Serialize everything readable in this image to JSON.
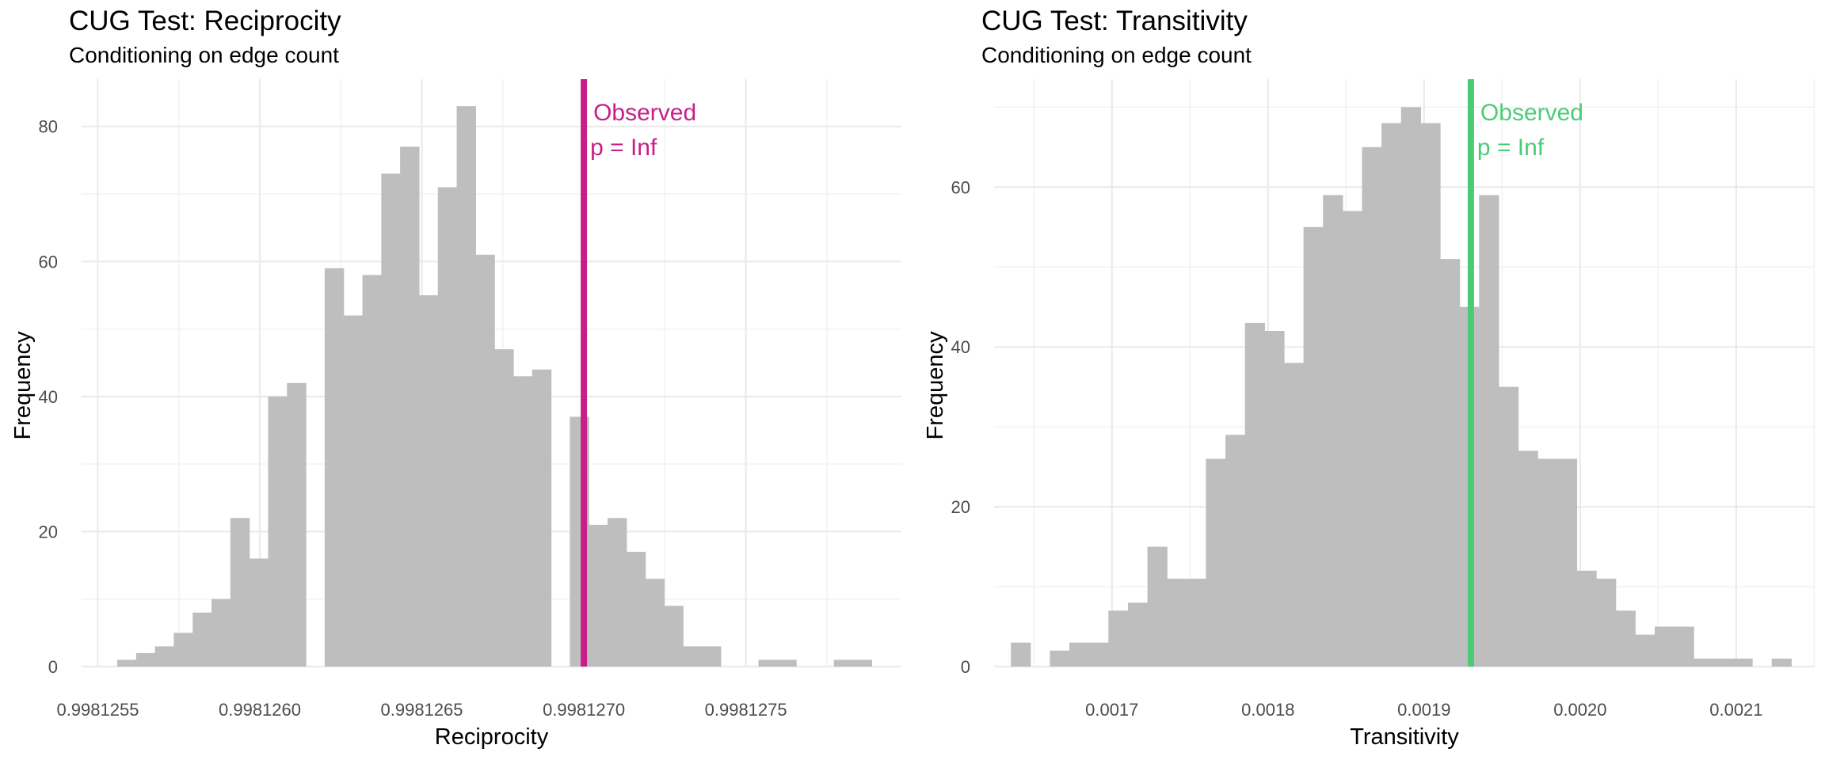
{
  "chart_data": [
    {
      "type": "bar",
      "subtype": "histogram",
      "title": "CUG Test: Reciprocity",
      "subtitle": "Conditioning on edge count",
      "xlabel": "Reciprocity",
      "ylabel": "Frequency",
      "xlim": [
        0.99812545,
        0.99812798
      ],
      "ylim": [
        0,
        87
      ],
      "x_ticks": [
        0.9981255,
        0.998126,
        0.9981265,
        0.998127,
        0.9981275
      ],
      "x_tick_labels": [
        "0.9981255",
        "0.9981260",
        "0.9981265",
        "0.9981270",
        "0.9981275"
      ],
      "y_ticks": [
        0,
        20,
        40,
        60,
        80
      ],
      "y_tick_labels": [
        "0",
        "20",
        "40",
        "60",
        "80"
      ],
      "bin_start": 0.99812556,
      "bin_width": 5.82e-08,
      "counts": [
        1,
        2,
        3,
        5,
        8,
        10,
        22,
        16,
        40,
        42,
        0,
        59,
        52,
        58,
        73,
        77,
        55,
        71,
        83,
        61,
        47,
        43,
        44,
        0,
        37,
        21,
        22,
        17,
        13,
        9,
        3,
        3,
        0,
        0,
        1,
        1,
        0,
        0,
        1,
        1
      ],
      "bar_color": "#bebebe",
      "observed": {
        "value": 0.998127,
        "label": "Observed",
        "p_label": "p = Inf",
        "color": "#c71e8a"
      },
      "grid": true
    },
    {
      "type": "bar",
      "subtype": "histogram",
      "title": "CUG Test: Transitivity",
      "subtitle": "Conditioning on edge count",
      "xlabel": "Transitivity",
      "ylabel": "Frequency",
      "xlim": [
        0.0016245,
        0.0021503
      ],
      "ylim": [
        0,
        73.5
      ],
      "x_ticks": [
        0.0017,
        0.0018,
        0.0019,
        0.002,
        0.0021
      ],
      "x_tick_labels": [
        "0.0017",
        "0.0018",
        "0.0019",
        "0.0020",
        "0.0021"
      ],
      "y_ticks": [
        0,
        20,
        40,
        60
      ],
      "y_tick_labels": [
        "0",
        "20",
        "40",
        "60"
      ],
      "bin_start": 0.00163525,
      "bin_width": 1.25e-05,
      "counts": [
        3,
        0,
        2,
        3,
        3,
        7,
        8,
        15,
        11,
        11,
        26,
        29,
        43,
        42,
        38,
        55,
        59,
        57,
        65,
        68,
        70,
        68,
        51,
        45,
        59,
        35,
        27,
        26,
        26,
        12,
        11,
        7,
        4,
        5,
        5,
        1,
        1,
        1,
        0,
        1
      ],
      "bar_color": "#bebebe",
      "observed": {
        "value": 0.00193,
        "label": "Observed",
        "p_label": "p = Inf",
        "color": "#4ccb77"
      },
      "grid": true
    }
  ]
}
